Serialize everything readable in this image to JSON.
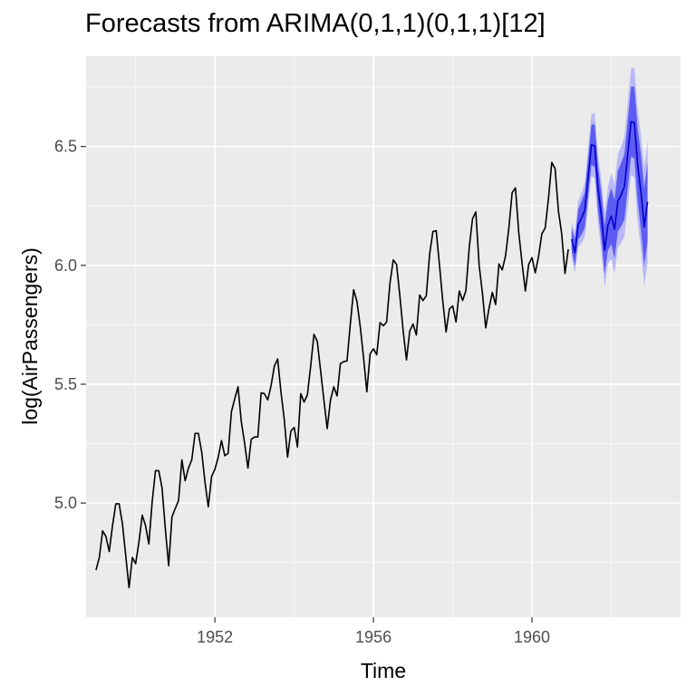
{
  "chart_data": {
    "type": "line",
    "title": "Forecasts from ARIMA(0,1,1)(0,1,1)[12]",
    "xlabel": "Time",
    "ylabel": "log(AirPassengers)",
    "x_ticks": [
      "1952",
      "1956",
      "1960"
    ],
    "y_ticks": [
      "5.0",
      "5.5",
      "6.0",
      "6.5"
    ],
    "xlim": [
      1948.75,
      1963.75
    ],
    "ylim": [
      4.52,
      6.88
    ],
    "grid": true,
    "background": "#ebebeb",
    "colors": {
      "history": "#000000",
      "forecast": "#0000cc",
      "band80": "#5c5cf2",
      "band95": "#b9b9f7"
    },
    "history": {
      "start": 1949,
      "frequency": 12,
      "values": [
        4.718,
        4.771,
        4.883,
        4.86,
        4.796,
        4.905,
        4.997,
        4.997,
        4.913,
        4.779,
        4.644,
        4.771,
        4.745,
        4.836,
        4.949,
        4.905,
        4.828,
        5.004,
        5.136,
        5.136,
        5.063,
        4.89,
        4.736,
        4.942,
        4.977,
        5.011,
        5.182,
        5.094,
        5.147,
        5.182,
        5.293,
        5.293,
        5.215,
        5.088,
        4.984,
        5.112,
        5.142,
        5.193,
        5.263,
        5.199,
        5.209,
        5.384,
        5.438,
        5.489,
        5.342,
        5.252,
        5.147,
        5.268,
        5.278,
        5.278,
        5.464,
        5.46,
        5.434,
        5.493,
        5.576,
        5.606,
        5.468,
        5.352,
        5.193,
        5.303,
        5.318,
        5.236,
        5.46,
        5.425,
        5.455,
        5.576,
        5.71,
        5.68,
        5.557,
        5.434,
        5.313,
        5.434,
        5.489,
        5.451,
        5.587,
        5.595,
        5.598,
        5.753,
        5.897,
        5.849,
        5.743,
        5.613,
        5.468,
        5.628,
        5.649,
        5.624,
        5.759,
        5.746,
        5.762,
        5.924,
        6.023,
        6.004,
        5.872,
        5.724,
        5.602,
        5.724,
        5.753,
        5.707,
        5.875,
        5.852,
        5.872,
        6.045,
        6.142,
        6.146,
        6.001,
        5.849,
        5.72,
        5.817,
        5.829,
        5.762,
        5.892,
        5.852,
        5.894,
        6.075,
        6.196,
        6.225,
        6.001,
        5.883,
        5.737,
        5.82,
        5.886,
        5.835,
        6.006,
        5.981,
        6.04,
        6.157,
        6.306,
        6.326,
        6.138,
        6.009,
        5.892,
        6.004,
        6.033,
        5.969,
        6.038,
        6.133,
        6.157,
        6.282,
        6.433,
        6.407,
        6.23,
        6.133,
        5.966,
        6.068
      ]
    },
    "forecast": {
      "start": 1961,
      "frequency": 12,
      "values": [
        6.11,
        6.054,
        6.172,
        6.199,
        6.233,
        6.369,
        6.507,
        6.503,
        6.325,
        6.209,
        6.064,
        6.169,
        6.208,
        6.152,
        6.27,
        6.297,
        6.331,
        6.467,
        6.605,
        6.601,
        6.423,
        6.307,
        6.162,
        6.267
      ],
      "se80": [
        0.047,
        0.056,
        0.063,
        0.069,
        0.075,
        0.08,
        0.085,
        0.09,
        0.094,
        0.098,
        0.102,
        0.106,
        0.118,
        0.123,
        0.128,
        0.133,
        0.138,
        0.142,
        0.147,
        0.151,
        0.155,
        0.159,
        0.163,
        0.167
      ]
    }
  }
}
